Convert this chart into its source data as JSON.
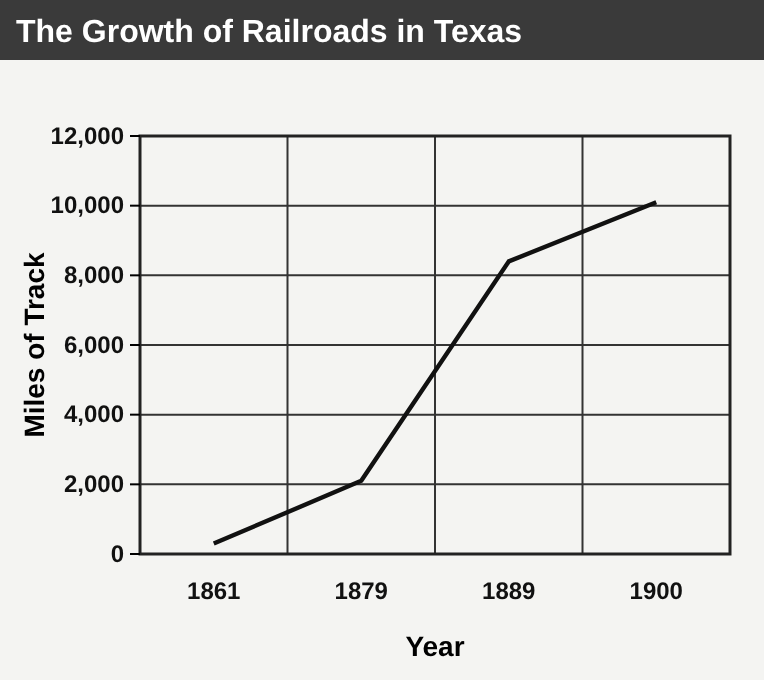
{
  "chart_data": {
    "type": "line",
    "title": "The Growth of Railroads in Texas",
    "xlabel": "Year",
    "ylabel": "Miles of Track",
    "categories": [
      "1861",
      "1879",
      "1889",
      "1900"
    ],
    "series": [
      {
        "color": "#111111",
        "values": [
          300,
          2100,
          8400,
          10100
        ]
      }
    ],
    "ylim": [
      0,
      12000
    ],
    "yticks": [
      {
        "value": 0,
        "label": "0"
      },
      {
        "value": 2000,
        "label": "2,000"
      },
      {
        "value": 4000,
        "label": "4,000"
      },
      {
        "value": 6000,
        "label": "6,000"
      },
      {
        "value": 8000,
        "label": "8,000"
      },
      {
        "value": 10000,
        "label": "10,000"
      },
      {
        "value": 12000,
        "label": "12,000"
      }
    ],
    "grid": true,
    "marker": "none",
    "line_style": "solid"
  }
}
